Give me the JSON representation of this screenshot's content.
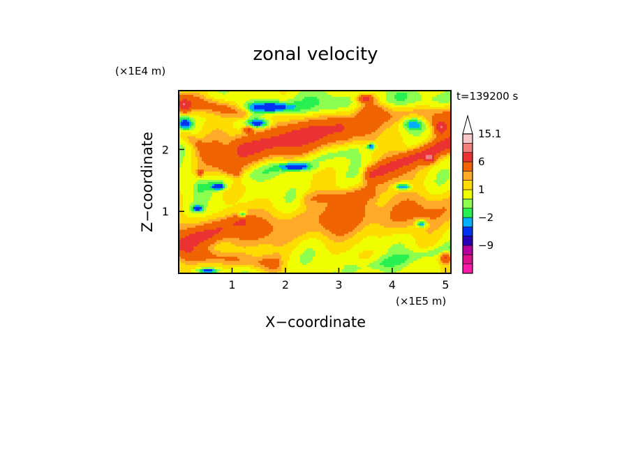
{
  "chart_data": {
    "type": "heatmap",
    "title": "zonal velocity",
    "xlabel": "X−coordinate",
    "ylabel": "Z−coordinate",
    "x_scale_label": "(×1E5 m)",
    "y_scale_label": "(×1E4 m)",
    "time_label": "t=139200 s",
    "xlim": [
      0,
      5.1
    ],
    "ylim": [
      0,
      2.95
    ],
    "x_ticks": [
      {
        "value": 1,
        "label": "1"
      },
      {
        "value": 2,
        "label": "2"
      },
      {
        "value": 3,
        "label": "3"
      },
      {
        "value": 4,
        "label": "4"
      },
      {
        "value": 5,
        "label": "5"
      }
    ],
    "y_ticks": [
      {
        "value": 1,
        "label": "1"
      },
      {
        "value": 2,
        "label": "2"
      }
    ],
    "colorbar": {
      "levels": [
        -15,
        -12,
        -9,
        -6,
        -3,
        -2,
        -1,
        0,
        1,
        2,
        3,
        6,
        9,
        12,
        15.1
      ],
      "colors": [
        "#ff1aa8",
        "#d8108c",
        "#b4009b",
        "#2a00b4",
        "#0032f0",
        "#00b0ff",
        "#28f050",
        "#8cff50",
        "#f0ff00",
        "#ffdc00",
        "#ffaa28",
        "#f06400",
        "#ea3232",
        "#f08080",
        "#f8c8c8",
        "#ffffff"
      ],
      "labels": [
        {
          "value": 15.1,
          "label": "15.1"
        },
        {
          "value": 6,
          "label": "6"
        },
        {
          "value": 1,
          "label": "1"
        },
        {
          "value": -2,
          "label": "−2"
        },
        {
          "value": -9,
          "label": "−9"
        }
      ],
      "extend": "max"
    },
    "field": {
      "background": 0.6,
      "bands": [
        {
          "x0": 0.0,
          "z0": 0.55,
          "x1": 5.1,
          "z1": 1.05,
          "width": 0.28,
          "value": 2.5
        },
        {
          "x0": 0.6,
          "z0": 1.85,
          "x1": 3.5,
          "z1": 2.4,
          "width": 0.35,
          "value": 2.5
        },
        {
          "x0": 1.2,
          "z0": 2.0,
          "x1": 3.0,
          "z1": 2.35,
          "width": 0.18,
          "value": 4.5
        },
        {
          "x0": 3.0,
          "z0": 1.0,
          "x1": 5.1,
          "z1": 2.2,
          "width": 0.25,
          "value": 2.0
        },
        {
          "x0": 3.6,
          "z0": 1.6,
          "x1": 5.1,
          "z1": 2.1,
          "width": 0.12,
          "value": 5.0
        },
        {
          "x0": 0.0,
          "z0": 0.45,
          "x1": 1.2,
          "z1": 0.85,
          "width": 0.14,
          "value": 4.0
        },
        {
          "x0": 0.0,
          "z0": 2.8,
          "x1": 1.2,
          "z1": 2.6,
          "width": 0.12,
          "value": 3.0
        },
        {
          "x0": 1.8,
          "z0": 2.7,
          "x1": 5.1,
          "z1": 2.8,
          "width": 0.18,
          "value": -1.5
        },
        {
          "x0": 0.4,
          "z0": 1.4,
          "x1": 3.3,
          "z1": 2.0,
          "width": 0.12,
          "value": -1.5
        },
        {
          "x0": 0.2,
          "z0": 0.3,
          "x1": 1.8,
          "z1": 0.15,
          "width": 0.12,
          "value": 2.5
        },
        {
          "x0": 3.2,
          "z0": 0.05,
          "x1": 5.1,
          "z1": 0.4,
          "width": 0.1,
          "value": -1.5
        },
        {
          "x0": 3.6,
          "z0": 2.6,
          "x1": 5.1,
          "z1": 2.5,
          "width": 0.2,
          "value": 3.0
        },
        {
          "x0": 2.4,
          "z0": 1.2,
          "x1": 3.6,
          "z1": 1.3,
          "width": 0.1,
          "value": 1.5
        },
        {
          "x0": 0.1,
          "z0": 2.25,
          "x1": 1.1,
          "z1": 1.6,
          "width": 0.1,
          "value": 2.0
        }
      ],
      "blobs": [
        {
          "x": 0.12,
          "z": 2.42,
          "rx": 0.14,
          "rz": 0.11,
          "value": -5
        },
        {
          "x": 1.7,
          "z": 2.68,
          "rx": 0.45,
          "rz": 0.08,
          "value": -5
        },
        {
          "x": 4.4,
          "z": 2.42,
          "rx": 0.22,
          "rz": 0.12,
          "value": -5
        },
        {
          "x": 2.2,
          "z": 1.72,
          "rx": 0.3,
          "rz": 0.06,
          "value": -5
        },
        {
          "x": 1.5,
          "z": 2.42,
          "rx": 0.2,
          "rz": 0.07,
          "value": -5
        },
        {
          "x": 0.35,
          "z": 1.05,
          "rx": 0.1,
          "rz": 0.05,
          "value": -5
        },
        {
          "x": 0.75,
          "z": 1.4,
          "rx": 0.12,
          "rz": 0.05,
          "value": -5
        },
        {
          "x": 1.2,
          "z": 0.95,
          "rx": 0.08,
          "rz": 0.05,
          "value": -5
        },
        {
          "x": 0.55,
          "z": 0.04,
          "rx": 0.18,
          "rz": 0.04,
          "value": -5
        },
        {
          "x": 3.6,
          "z": 2.05,
          "rx": 0.08,
          "rz": 0.05,
          "value": -5
        },
        {
          "x": 4.2,
          "z": 1.4,
          "rx": 0.15,
          "rz": 0.06,
          "value": -5
        },
        {
          "x": 4.55,
          "z": 0.8,
          "rx": 0.1,
          "rz": 0.06,
          "value": -5
        },
        {
          "x": 0.1,
          "z": 2.7,
          "rx": 0.12,
          "rz": 0.1,
          "value": 6
        },
        {
          "x": 5.0,
          "z": 0.25,
          "rx": 0.1,
          "rz": 0.08,
          "value": 6
        },
        {
          "x": 4.7,
          "z": 1.85,
          "rx": 0.1,
          "rz": 0.07,
          "value": 6
        },
        {
          "x": 4.9,
          "z": 2.35,
          "rx": 0.1,
          "rz": 0.1,
          "value": 6
        },
        {
          "x": 3.5,
          "z": 2.82,
          "rx": 0.15,
          "rz": 0.06,
          "value": 6
        },
        {
          "x": 0.4,
          "z": 1.62,
          "rx": 0.05,
          "rz": 0.05,
          "value": 6
        },
        {
          "x": 1.3,
          "z": 2.32,
          "rx": 0.09,
          "rz": 0.05,
          "value": 6
        }
      ]
    }
  }
}
